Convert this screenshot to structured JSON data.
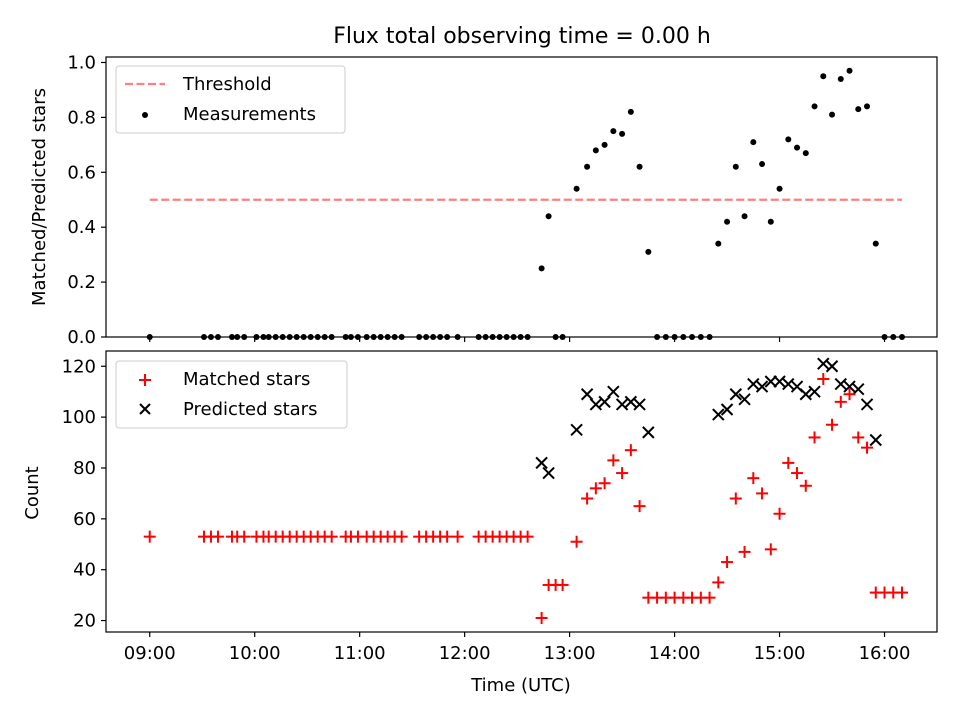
{
  "figure": {
    "title": "Flux total observing time = 0.00 h",
    "xlabel": "Time (UTC)",
    "xticks": [
      "09:00",
      "10:00",
      "11:00",
      "12:00",
      "13:00",
      "14:00",
      "15:00",
      "16:00"
    ]
  },
  "colors": {
    "threshold": "#ff7f7f",
    "measurements": "#000000",
    "matched": "#ff0000",
    "predicted": "#000000"
  },
  "chart_data": [
    {
      "type": "scatter",
      "ylabel": "Matched/Predicted stars",
      "xlim": [
        "08:35",
        "16:30"
      ],
      "ylim": [
        0,
        1.02
      ],
      "yticks": [
        "0.0",
        "0.2",
        "0.4",
        "0.6",
        "0.8",
        "1.0"
      ],
      "legend_position": "upper-left",
      "threshold": {
        "name": "Threshold",
        "y": 0.5,
        "x_range": [
          "09:00",
          "16:10"
        ]
      },
      "measurements": {
        "name": "Measurements",
        "points": [
          [
            "09:00",
            0
          ],
          [
            "09:31",
            0
          ],
          [
            "09:35",
            0
          ],
          [
            "09:39",
            0
          ],
          [
            "09:47",
            0
          ],
          [
            "09:50",
            0
          ],
          [
            "09:54",
            0
          ],
          [
            "10:01",
            0
          ],
          [
            "10:05",
            0
          ],
          [
            "10:08",
            0
          ],
          [
            "10:12",
            0
          ],
          [
            "10:16",
            0
          ],
          [
            "10:20",
            0
          ],
          [
            "10:24",
            0
          ],
          [
            "10:28",
            0
          ],
          [
            "10:32",
            0
          ],
          [
            "10:36",
            0
          ],
          [
            "10:40",
            0
          ],
          [
            "10:44",
            0
          ],
          [
            "10:52",
            0
          ],
          [
            "10:55",
            0
          ],
          [
            "10:59",
            0
          ],
          [
            "11:04",
            0
          ],
          [
            "11:08",
            0
          ],
          [
            "11:12",
            0
          ],
          [
            "11:16",
            0
          ],
          [
            "11:20",
            0
          ],
          [
            "11:24",
            0
          ],
          [
            "11:34",
            0
          ],
          [
            "11:38",
            0
          ],
          [
            "11:42",
            0
          ],
          [
            "11:46",
            0
          ],
          [
            "11:50",
            0
          ],
          [
            "11:56",
            0
          ],
          [
            "12:08",
            0
          ],
          [
            "12:12",
            0
          ],
          [
            "12:16",
            0
          ],
          [
            "12:20",
            0
          ],
          [
            "12:24",
            0
          ],
          [
            "12:28",
            0
          ],
          [
            "12:32",
            0
          ],
          [
            "12:36",
            0
          ],
          [
            "12:44",
            0.25
          ],
          [
            "12:48",
            0.44
          ],
          [
            "12:52",
            0
          ],
          [
            "12:56",
            0
          ],
          [
            "13:04",
            0.54
          ],
          [
            "13:10",
            0.62
          ],
          [
            "13:15",
            0.68
          ],
          [
            "13:20",
            0.7
          ],
          [
            "13:25",
            0.75
          ],
          [
            "13:30",
            0.74
          ],
          [
            "13:35",
            0.82
          ],
          [
            "13:40",
            0.62
          ],
          [
            "13:45",
            0.31
          ],
          [
            "13:50",
            0
          ],
          [
            "13:55",
            0
          ],
          [
            "14:00",
            0
          ],
          [
            "14:05",
            0
          ],
          [
            "14:10",
            0
          ],
          [
            "14:15",
            0
          ],
          [
            "14:20",
            0
          ],
          [
            "14:25",
            0.34
          ],
          [
            "14:30",
            0.42
          ],
          [
            "14:35",
            0.62
          ],
          [
            "14:40",
            0.44
          ],
          [
            "14:45",
            0.71
          ],
          [
            "14:50",
            0.63
          ],
          [
            "14:55",
            0.42
          ],
          [
            "15:00",
            0.54
          ],
          [
            "15:05",
            0.72
          ],
          [
            "15:10",
            0.69
          ],
          [
            "15:15",
            0.67
          ],
          [
            "15:20",
            0.84
          ],
          [
            "15:25",
            0.95
          ],
          [
            "15:30",
            0.81
          ],
          [
            "15:35",
            0.94
          ],
          [
            "15:40",
            0.97
          ],
          [
            "15:45",
            0.83
          ],
          [
            "15:50",
            0.84
          ],
          [
            "15:55",
            0.34
          ],
          [
            "16:00",
            0
          ],
          [
            "16:05",
            0
          ],
          [
            "16:10",
            0
          ]
        ]
      }
    },
    {
      "type": "scatter",
      "ylabel": "Count",
      "xlim": [
        "08:35",
        "16:30"
      ],
      "ylim": [
        15.5,
        126
      ],
      "yticks": [
        "20",
        "40",
        "60",
        "80",
        "100",
        "120"
      ],
      "legend_position": "upper-left",
      "series": [
        {
          "name": "Matched stars",
          "marker": "plus",
          "points": [
            [
              "09:00",
              53
            ],
            [
              "09:31",
              53
            ],
            [
              "09:35",
              53
            ],
            [
              "09:39",
              53
            ],
            [
              "09:47",
              53
            ],
            [
              "09:50",
              53
            ],
            [
              "09:54",
              53
            ],
            [
              "10:01",
              53
            ],
            [
              "10:05",
              53
            ],
            [
              "10:08",
              53
            ],
            [
              "10:12",
              53
            ],
            [
              "10:16",
              53
            ],
            [
              "10:20",
              53
            ],
            [
              "10:24",
              53
            ],
            [
              "10:28",
              53
            ],
            [
              "10:32",
              53
            ],
            [
              "10:36",
              53
            ],
            [
              "10:40",
              53
            ],
            [
              "10:44",
              53
            ],
            [
              "10:52",
              53
            ],
            [
              "10:55",
              53
            ],
            [
              "10:59",
              53
            ],
            [
              "11:04",
              53
            ],
            [
              "11:08",
              53
            ],
            [
              "11:12",
              53
            ],
            [
              "11:16",
              53
            ],
            [
              "11:20",
              53
            ],
            [
              "11:24",
              53
            ],
            [
              "11:34",
              53
            ],
            [
              "11:38",
              53
            ],
            [
              "11:42",
              53
            ],
            [
              "11:46",
              53
            ],
            [
              "11:50",
              53
            ],
            [
              "11:56",
              53
            ],
            [
              "12:08",
              53
            ],
            [
              "12:12",
              53
            ],
            [
              "12:16",
              53
            ],
            [
              "12:20",
              53
            ],
            [
              "12:24",
              53
            ],
            [
              "12:28",
              53
            ],
            [
              "12:32",
              53
            ],
            [
              "12:36",
              53
            ],
            [
              "12:44",
              21
            ],
            [
              "12:48",
              34
            ],
            [
              "12:52",
              34
            ],
            [
              "12:56",
              34
            ],
            [
              "13:04",
              51
            ],
            [
              "13:10",
              68
            ],
            [
              "13:15",
              72
            ],
            [
              "13:20",
              74
            ],
            [
              "13:25",
              83
            ],
            [
              "13:30",
              78
            ],
            [
              "13:35",
              87
            ],
            [
              "13:40",
              65
            ],
            [
              "13:45",
              29
            ],
            [
              "13:50",
              29
            ],
            [
              "13:55",
              29
            ],
            [
              "14:00",
              29
            ],
            [
              "14:05",
              29
            ],
            [
              "14:10",
              29
            ],
            [
              "14:15",
              29
            ],
            [
              "14:20",
              29
            ],
            [
              "14:25",
              35
            ],
            [
              "14:30",
              43
            ],
            [
              "14:35",
              68
            ],
            [
              "14:40",
              47
            ],
            [
              "14:45",
              76
            ],
            [
              "14:50",
              70
            ],
            [
              "14:55",
              48
            ],
            [
              "15:00",
              62
            ],
            [
              "15:05",
              82
            ],
            [
              "15:10",
              78
            ],
            [
              "15:15",
              73
            ],
            [
              "15:20",
              92
            ],
            [
              "15:25",
              115
            ],
            [
              "15:30",
              97
            ],
            [
              "15:35",
              106
            ],
            [
              "15:40",
              109
            ],
            [
              "15:45",
              92
            ],
            [
              "15:50",
              88
            ],
            [
              "15:55",
              31
            ],
            [
              "16:00",
              31
            ],
            [
              "16:05",
              31
            ],
            [
              "16:10",
              31
            ]
          ]
        },
        {
          "name": "Predicted stars",
          "marker": "x",
          "points": [
            [
              "12:44",
              82
            ],
            [
              "12:48",
              78
            ],
            [
              "13:04",
              95
            ],
            [
              "13:10",
              109
            ],
            [
              "13:15",
              105
            ],
            [
              "13:20",
              106
            ],
            [
              "13:25",
              110
            ],
            [
              "13:30",
              105
            ],
            [
              "13:35",
              106
            ],
            [
              "13:40",
              105
            ],
            [
              "13:45",
              94
            ],
            [
              "14:25",
              101
            ],
            [
              "14:30",
              103
            ],
            [
              "14:35",
              109
            ],
            [
              "14:40",
              107
            ],
            [
              "14:45",
              113
            ],
            [
              "14:50",
              112
            ],
            [
              "14:55",
              114
            ],
            [
              "15:00",
              114
            ],
            [
              "15:05",
              113
            ],
            [
              "15:10",
              112
            ],
            [
              "15:15",
              109
            ],
            [
              "15:20",
              110
            ],
            [
              "15:25",
              121
            ],
            [
              "15:30",
              120
            ],
            [
              "15:35",
              113
            ],
            [
              "15:40",
              112
            ],
            [
              "15:45",
              111
            ],
            [
              "15:50",
              105
            ],
            [
              "15:55",
              91
            ]
          ]
        }
      ]
    }
  ]
}
